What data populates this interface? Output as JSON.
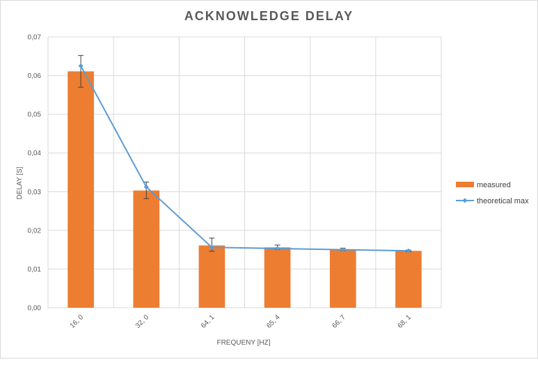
{
  "chart_data": {
    "type": "bar",
    "title": "ACKNOWLEDGE DELAY",
    "xlabel": "FREQUENY [HZ]",
    "ylabel": "DELAY [S]",
    "categories": [
      "16,0",
      "32,0",
      "64,1",
      "65,4",
      "66,7",
      "68,1"
    ],
    "ylim": [
      0,
      0.07
    ],
    "yticks": [
      "0,00",
      "0,01",
      "0,02",
      "0,03",
      "0,04",
      "0,05",
      "0,06",
      "0,07"
    ],
    "grid": true,
    "legend_position": "right",
    "series": [
      {
        "name": "measured",
        "type": "bar",
        "color": "#ED7D31",
        "values": [
          0.0611,
          0.0303,
          0.0161,
          0.0156,
          0.0151,
          0.0147
        ],
        "error_low": [
          0.057,
          0.0282,
          0.0146,
          0.0151,
          0.0148,
          0.0145
        ],
        "error_high": [
          0.0652,
          0.0325,
          0.018,
          0.0162,
          0.0154,
          0.0149
        ]
      },
      {
        "name": "theoretical max",
        "type": "line",
        "color": "#5B9BD5",
        "values": [
          0.0625,
          0.0312,
          0.0156,
          0.0153,
          0.015,
          0.0147
        ]
      }
    ]
  }
}
